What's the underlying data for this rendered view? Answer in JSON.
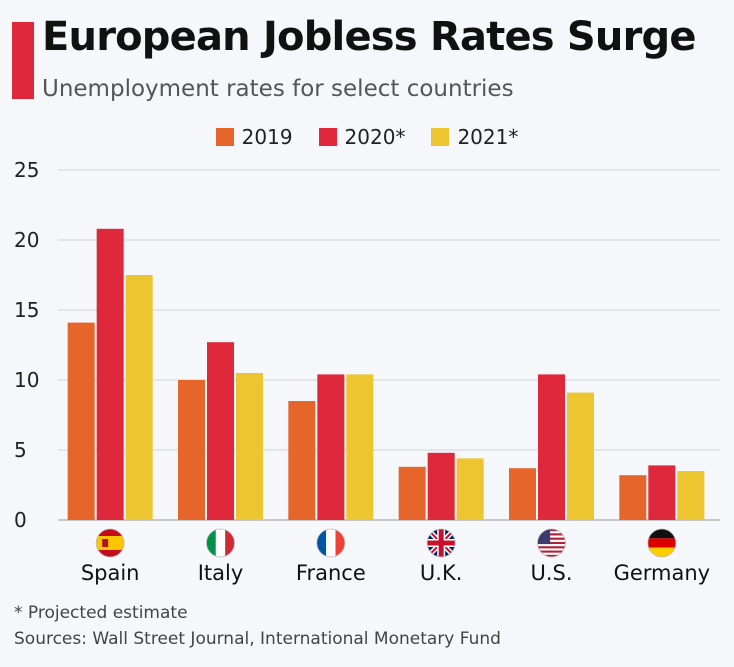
{
  "header": {
    "title": "European Jobless Rates Surge",
    "subtitle": "Unemployment rates for select countries"
  },
  "footer": {
    "footnote": "* Projected estimate",
    "sources": "Sources: Wall Street Journal, International Monetary Fund"
  },
  "colors": {
    "accent": "#e0283c",
    "s2019": "#e5652b",
    "s2020": "#e0283c",
    "s2021": "#ecc531"
  },
  "chart_data": {
    "type": "bar",
    "title": "European Jobless Rates Surge",
    "subtitle": "Unemployment rates for select countries",
    "categories": [
      "Spain",
      "Italy",
      "France",
      "U.K.",
      "U.S.",
      "Germany"
    ],
    "flag_icons": [
      "spain-flag-icon",
      "italy-flag-icon",
      "france-flag-icon",
      "uk-flag-icon",
      "us-flag-icon",
      "germany-flag-icon"
    ],
    "series": [
      {
        "name": "2019",
        "color": "#e5652b",
        "values": [
          14.1,
          10.0,
          8.5,
          3.8,
          3.7,
          3.2
        ]
      },
      {
        "name": "2020*",
        "color": "#e0283c",
        "values": [
          20.8,
          12.7,
          10.4,
          4.8,
          10.4,
          3.9
        ]
      },
      {
        "name": "2021*",
        "color": "#ecc531",
        "values": [
          17.5,
          10.5,
          10.4,
          4.4,
          9.1,
          3.5
        ]
      }
    ],
    "ylim": [
      0,
      25
    ],
    "yticks": [
      "0",
      "5",
      "10",
      "15",
      "20",
      "25"
    ],
    "grid": true,
    "legend_position": "top-center"
  }
}
